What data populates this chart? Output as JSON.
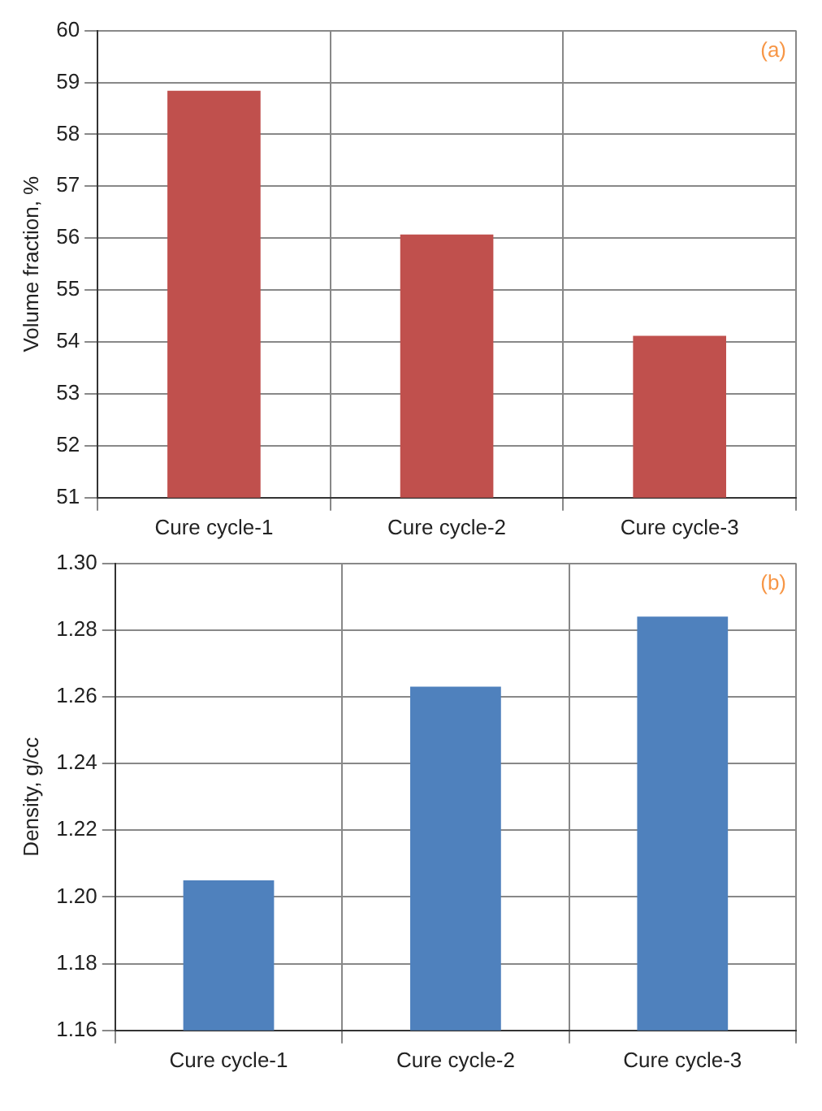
{
  "chart_data": [
    {
      "type": "bar",
      "ylabel": "Volume fraction, %",
      "categories": [
        "Cure cycle-1",
        "Cure cycle-2",
        "Cure cycle-3"
      ],
      "values": [
        58.84,
        56.07,
        54.12
      ],
      "color": "#c0504d",
      "ylim": [
        51,
        60
      ],
      "yticks": [
        51,
        52,
        53,
        54,
        55,
        56,
        57,
        58,
        59,
        60
      ],
      "grid": true,
      "annotations": [
        "(a)"
      ]
    },
    {
      "type": "bar",
      "ylabel": "Density, g/cc",
      "categories": [
        "Cure cycle-1",
        "Cure cycle-2",
        "Cure cycle-3"
      ],
      "values": [
        1.205,
        1.263,
        1.284
      ],
      "color": "#4f81bd",
      "ylim": [
        1.16,
        1.3
      ],
      "yticks": [
        {
          "value": 1.16,
          "label": "1.16"
        },
        {
          "value": 1.18,
          "label": "1.18"
        },
        {
          "value": 1.2,
          "label": "1.20"
        },
        {
          "value": 1.22,
          "label": "1.22"
        },
        {
          "value": 1.24,
          "label": "1.24"
        },
        {
          "value": 1.26,
          "label": "1.26"
        },
        {
          "value": 1.28,
          "label": "1.28"
        },
        {
          "value": 1.3,
          "label": "1.30"
        }
      ],
      "grid": true,
      "annotations": [
        "(b)"
      ]
    }
  ]
}
